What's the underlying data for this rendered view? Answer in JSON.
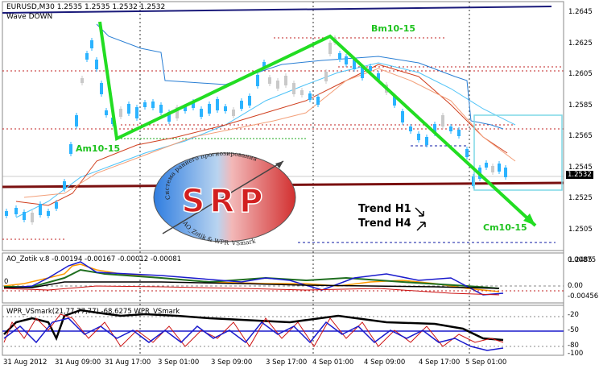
{
  "main_chart": {
    "header": "EURUSD,M30  1.2535 1.2535 1.2532 1.2532",
    "indicator": "Wave DOWN",
    "price_labels": [
      "1.2645",
      "1.2625",
      "1.2605",
      "1.2585",
      "1.2565",
      "1.2545",
      "1.2525",
      "1.2505",
      "1.2485"
    ],
    "current_price": "1.2532",
    "wave_labels": {
      "a": "Am10-15",
      "b": "Bm10-15",
      "c": "Cm10-15"
    },
    "trend_h1": "Trend H1",
    "trend_h4": "Trend H4",
    "logo": {
      "text": "SRP",
      "arc_top": "Система раннего прогнозирования",
      "arc_bottom": "AO_Zotik & WPR_VSmark"
    },
    "colors": {
      "wave": "#22dd22",
      "candles": "#2bb3ff",
      "support": "#7a1010",
      "frame": "#00008b"
    }
  },
  "ao_panel": {
    "header": "AO_Zotik v.8 -0.00194 -0.00167 -0.00012 -0.00081",
    "labels": [
      "0.00875",
      "0.00",
      "-0.00456"
    ]
  },
  "wpr_panel": {
    "header": "WPR_VSmark(21,77,77,77) -68.6275 WPR_VSmark",
    "labels": [
      "-20",
      "-50",
      "-80",
      "-100"
    ]
  },
  "time_axis": [
    "31 Aug 2012",
    "31 Aug 09:00",
    "31 Aug 17:00",
    "3 Sep 01:00",
    "3 Sep 09:00",
    "3 Sep 17:00",
    "4 Sep 01:00",
    "4 Sep 09:00",
    "4 Sep 17:00",
    "5 Sep 01:00"
  ]
}
